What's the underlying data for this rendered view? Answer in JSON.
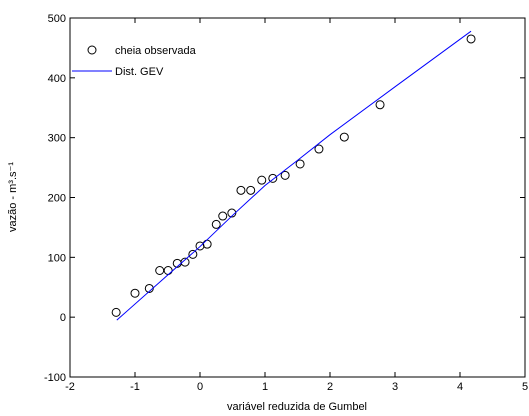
{
  "chart_data": {
    "type": "scatter",
    "xlabel": "variável reduzida de Gumbel",
    "ylabel": "vazão - m³.s⁻¹",
    "xlim": [
      -2,
      5
    ],
    "xticks": [
      -2,
      -1,
      0,
      1,
      2,
      3,
      4,
      5
    ],
    "ylim": [
      -100,
      500
    ],
    "yticks": [
      -100,
      0,
      100,
      200,
      300,
      400,
      500
    ],
    "legend": "upper left",
    "series": [
      {
        "name": "cheia observada",
        "color": "#000000",
        "style": "markers",
        "x": [
          -1.29,
          -1.0,
          -0.78,
          -0.62,
          -0.49,
          -0.35,
          -0.23,
          -0.11,
          0.0,
          0.11,
          0.25,
          0.35,
          0.49,
          0.63,
          0.78,
          0.95,
          1.12,
          1.31,
          1.54,
          1.83,
          2.22,
          2.77,
          4.17
        ],
        "values": [
          8,
          40,
          48,
          78,
          78,
          90,
          92,
          105,
          119,
          122,
          155,
          169,
          174,
          212,
          212,
          229,
          232,
          237,
          256,
          281,
          301,
          355,
          465
        ]
      },
      {
        "name": "Dist. GEV",
        "color": "#0000ff",
        "style": "line",
        "x": [
          -1.28,
          -0.5,
          0,
          0.5,
          1,
          1.5,
          2,
          3,
          4.17
        ],
        "values": [
          -5,
          70,
          118,
          170,
          220,
          262,
          305,
          385,
          478
        ]
      }
    ]
  }
}
